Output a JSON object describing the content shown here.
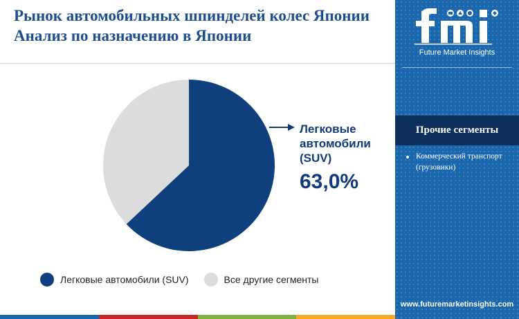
{
  "title": {
    "line1": "Рынок автомобильных шпинделей колес Японии",
    "line2": "Анализ по назначению в Японии"
  },
  "chart_data": {
    "type": "pie",
    "title": "Рынок автомобильных шпинделей колес Японии Анализ по назначению в Японии",
    "slices": [
      {
        "name": "Легковые автомобили (SUV)",
        "value": 63.0,
        "color": "#0f3f7d"
      },
      {
        "name": "Все другие сегменты",
        "value": 37.0,
        "color": "#dcdcdc"
      }
    ],
    "callout": {
      "label": "Легковые автомобили (SUV)",
      "value_text": "63,0%"
    },
    "legend_position": "bottom"
  },
  "callout": {
    "label_line1": "Легковые",
    "label_line2": "автомобили",
    "label_line3": "(SUV)",
    "value": "63,0%"
  },
  "legend": [
    {
      "label": "Легковые автомобили (SUV)",
      "color": "#0f3f7d"
    },
    {
      "label": "Все другие сегменты",
      "color": "#dcdcdc"
    }
  ],
  "sidebar": {
    "brand": "fmi",
    "brand_full": "Future Market Insights",
    "segments_title": "Прочие сегменты",
    "segments": [
      "Коммерческий транспорт (грузовики)"
    ],
    "website": "www.futuremarketinsights.com"
  },
  "colors": {
    "title": "#1f4e8c",
    "sidebar_bg": "#1b67ad",
    "sidebar_header": "#0d2f5c",
    "bottom_bar": [
      "#1b67ad",
      "#c62828",
      "#7cb342",
      "#f9a825"
    ]
  }
}
